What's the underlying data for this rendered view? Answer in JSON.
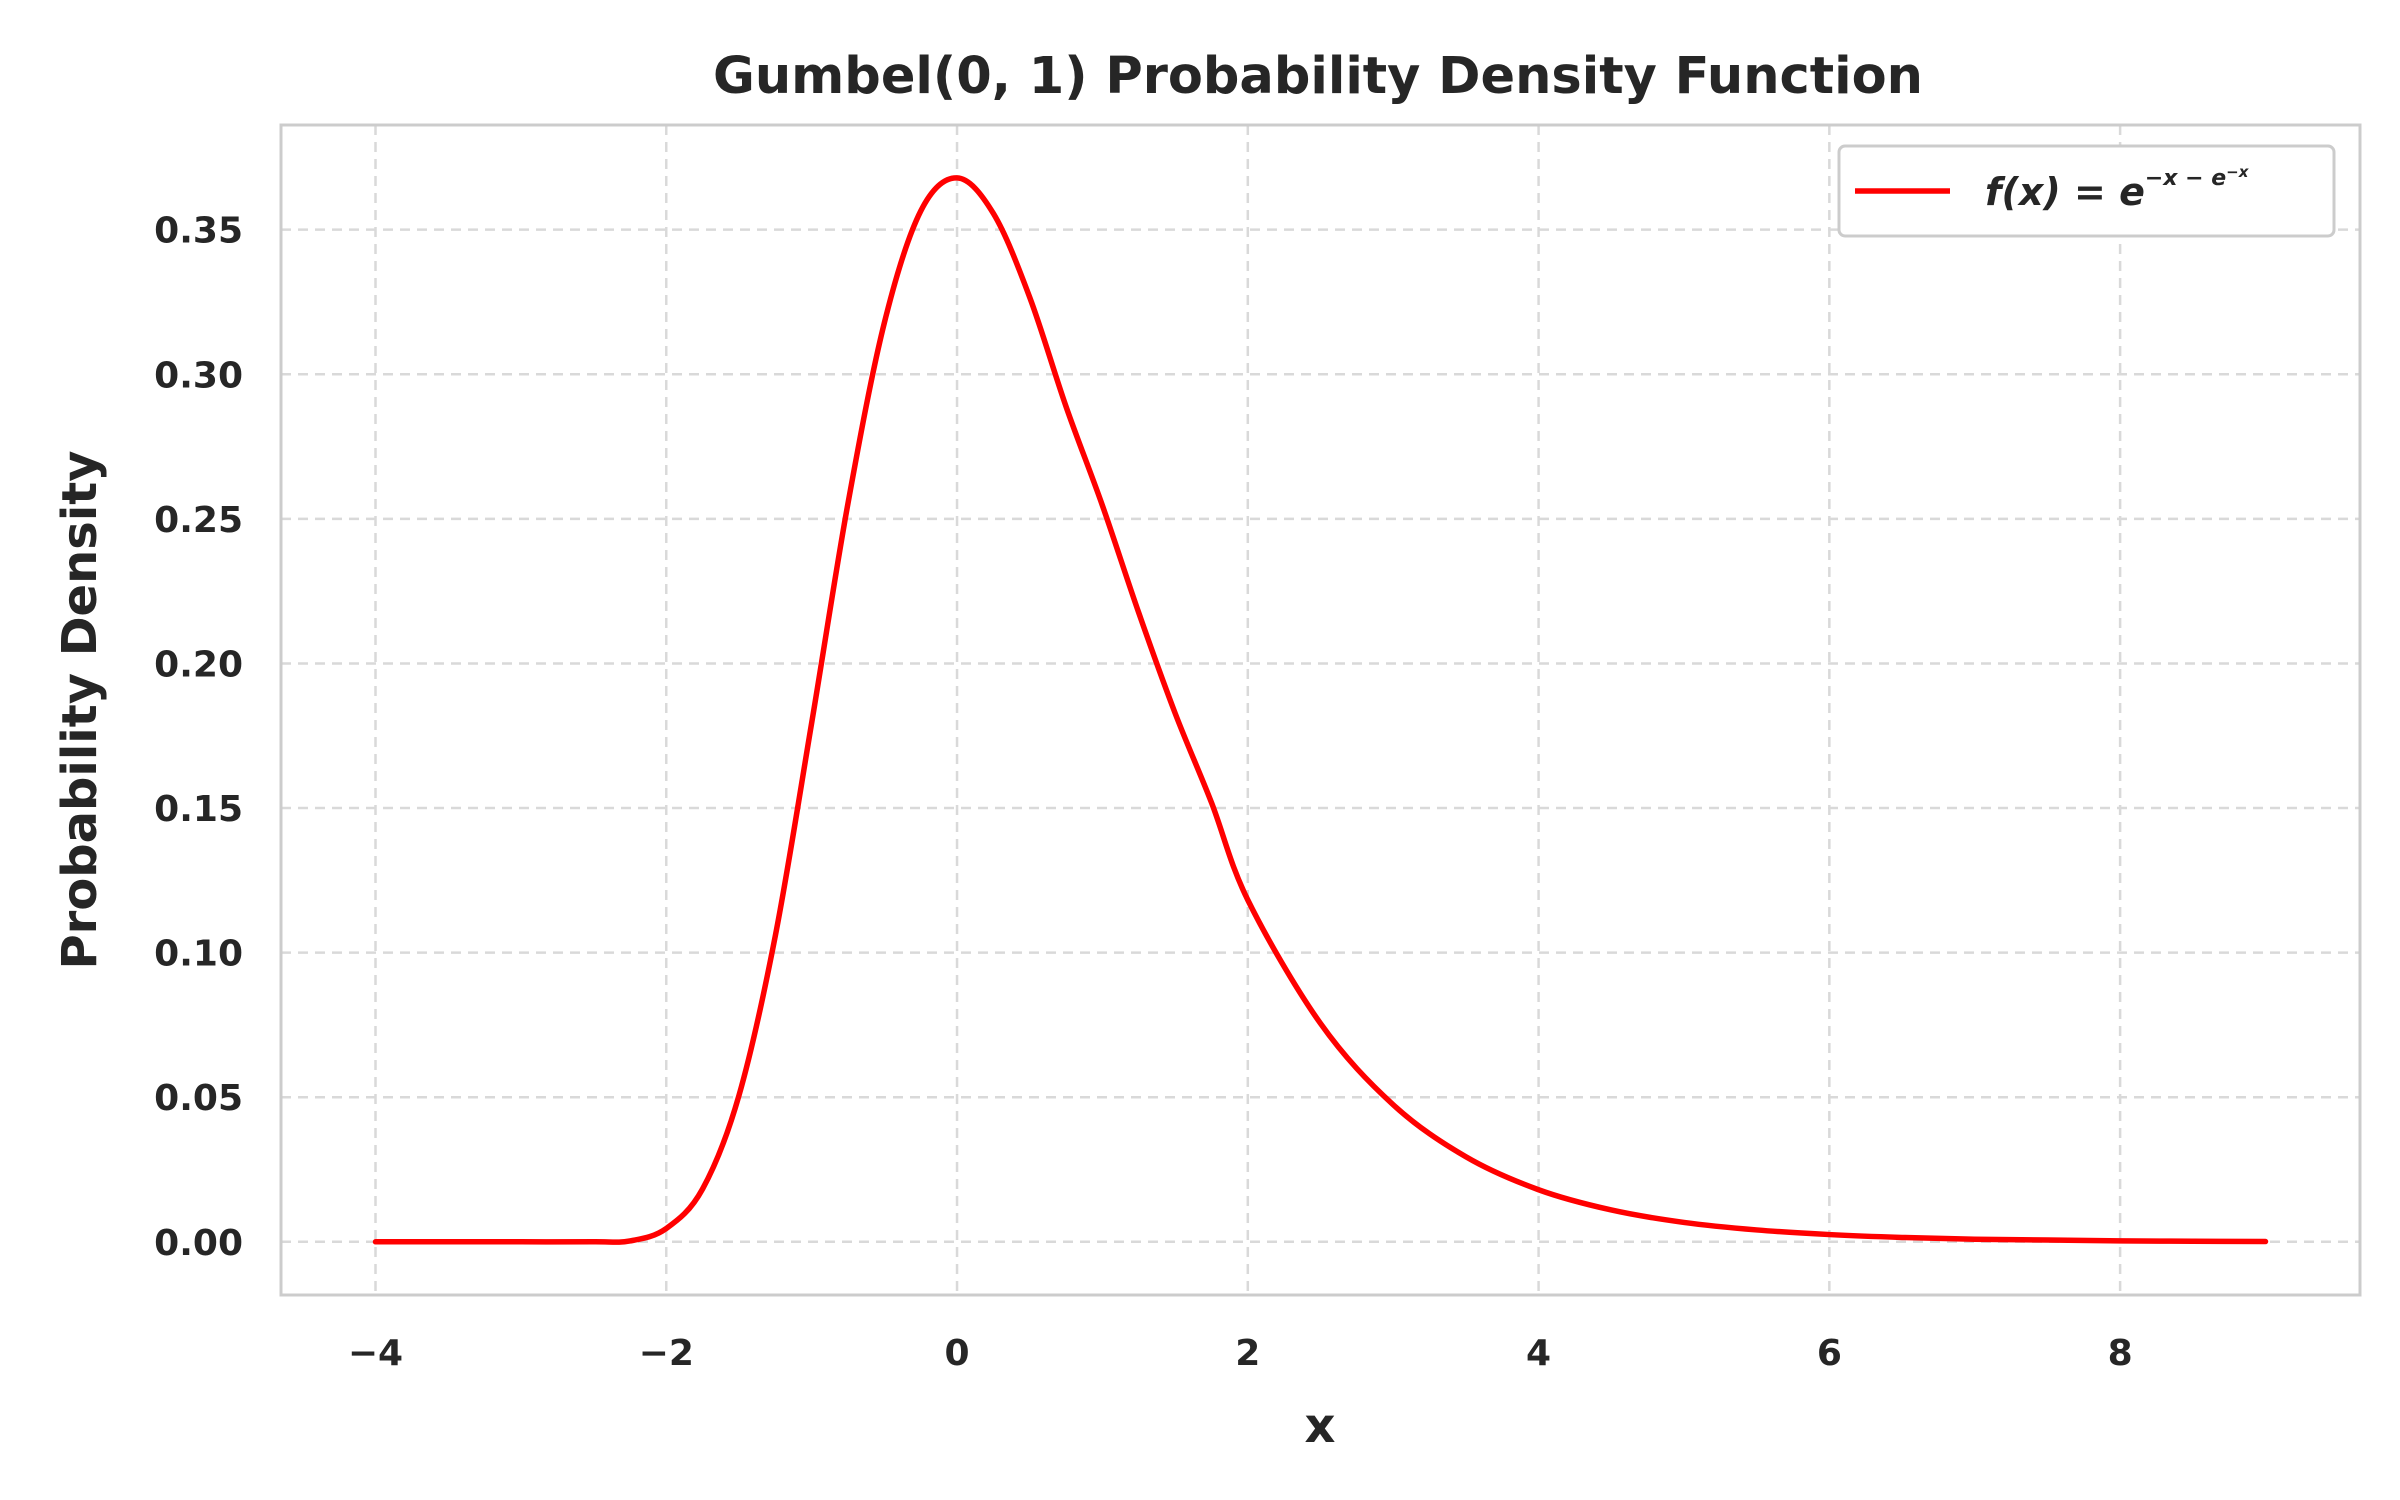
{
  "chart_data": {
    "type": "line",
    "title": "Gumbel(0, 1) Probability Density Function",
    "xlabel": "x",
    "ylabel": "Probability Density",
    "xlim": [
      -4.65,
      9.65
    ],
    "ylim": [
      -0.0184,
      0.3862
    ],
    "xticks": [
      -4,
      -2,
      0,
      2,
      4,
      6,
      8
    ],
    "xtick_labels": [
      "−4",
      "−2",
      "0",
      "2",
      "4",
      "6",
      "8"
    ],
    "yticks": [
      0.0,
      0.05,
      0.1,
      0.15,
      0.2,
      0.25,
      0.3,
      0.35
    ],
    "ytick_labels": [
      "0.00",
      "0.05",
      "0.10",
      "0.15",
      "0.20",
      "0.25",
      "0.30",
      "0.35"
    ],
    "grid": true,
    "legend_position": "top-right",
    "series": [
      {
        "name": "f(x) = e^(−x − e^(−x))",
        "color": "#ff0000",
        "x": [
          -4.0,
          -3.5,
          -3.0,
          -2.5,
          -2.25,
          -2.0,
          -1.75,
          -1.5,
          -1.25,
          -1.0,
          -0.75,
          -0.5,
          -0.25,
          0.0,
          0.25,
          0.5,
          0.75,
          1.0,
          1.25,
          1.5,
          1.75,
          2.0,
          2.5,
          3.0,
          3.5,
          4.0,
          4.5,
          5.0,
          5.5,
          6.0,
          6.5,
          7.0,
          7.5,
          8.0,
          8.5,
          9.0
        ],
        "y": [
          0.0,
          0.0,
          0.0,
          0.0,
          0.0003,
          0.0046,
          0.0183,
          0.0506,
          0.1058,
          0.1794,
          0.2554,
          0.3178,
          0.3564,
          0.3679,
          0.3556,
          0.3266,
          0.2888,
          0.2546,
          0.2175,
          0.1828,
          0.1519,
          0.1182,
          0.0755,
          0.0474,
          0.0294,
          0.018,
          0.011,
          0.0067,
          0.0041,
          0.0025,
          0.0015,
          0.0009,
          0.0006,
          0.0003,
          0.0002,
          0.0001
        ]
      }
    ],
    "legend": {
      "label_main": "f(x) = e",
      "label_sup": "−x − e",
      "label_sup2": "−x"
    },
    "line_color": "#ff0000",
    "spine_color": "#cccccc",
    "grid_color": "#d9d9d9"
  }
}
